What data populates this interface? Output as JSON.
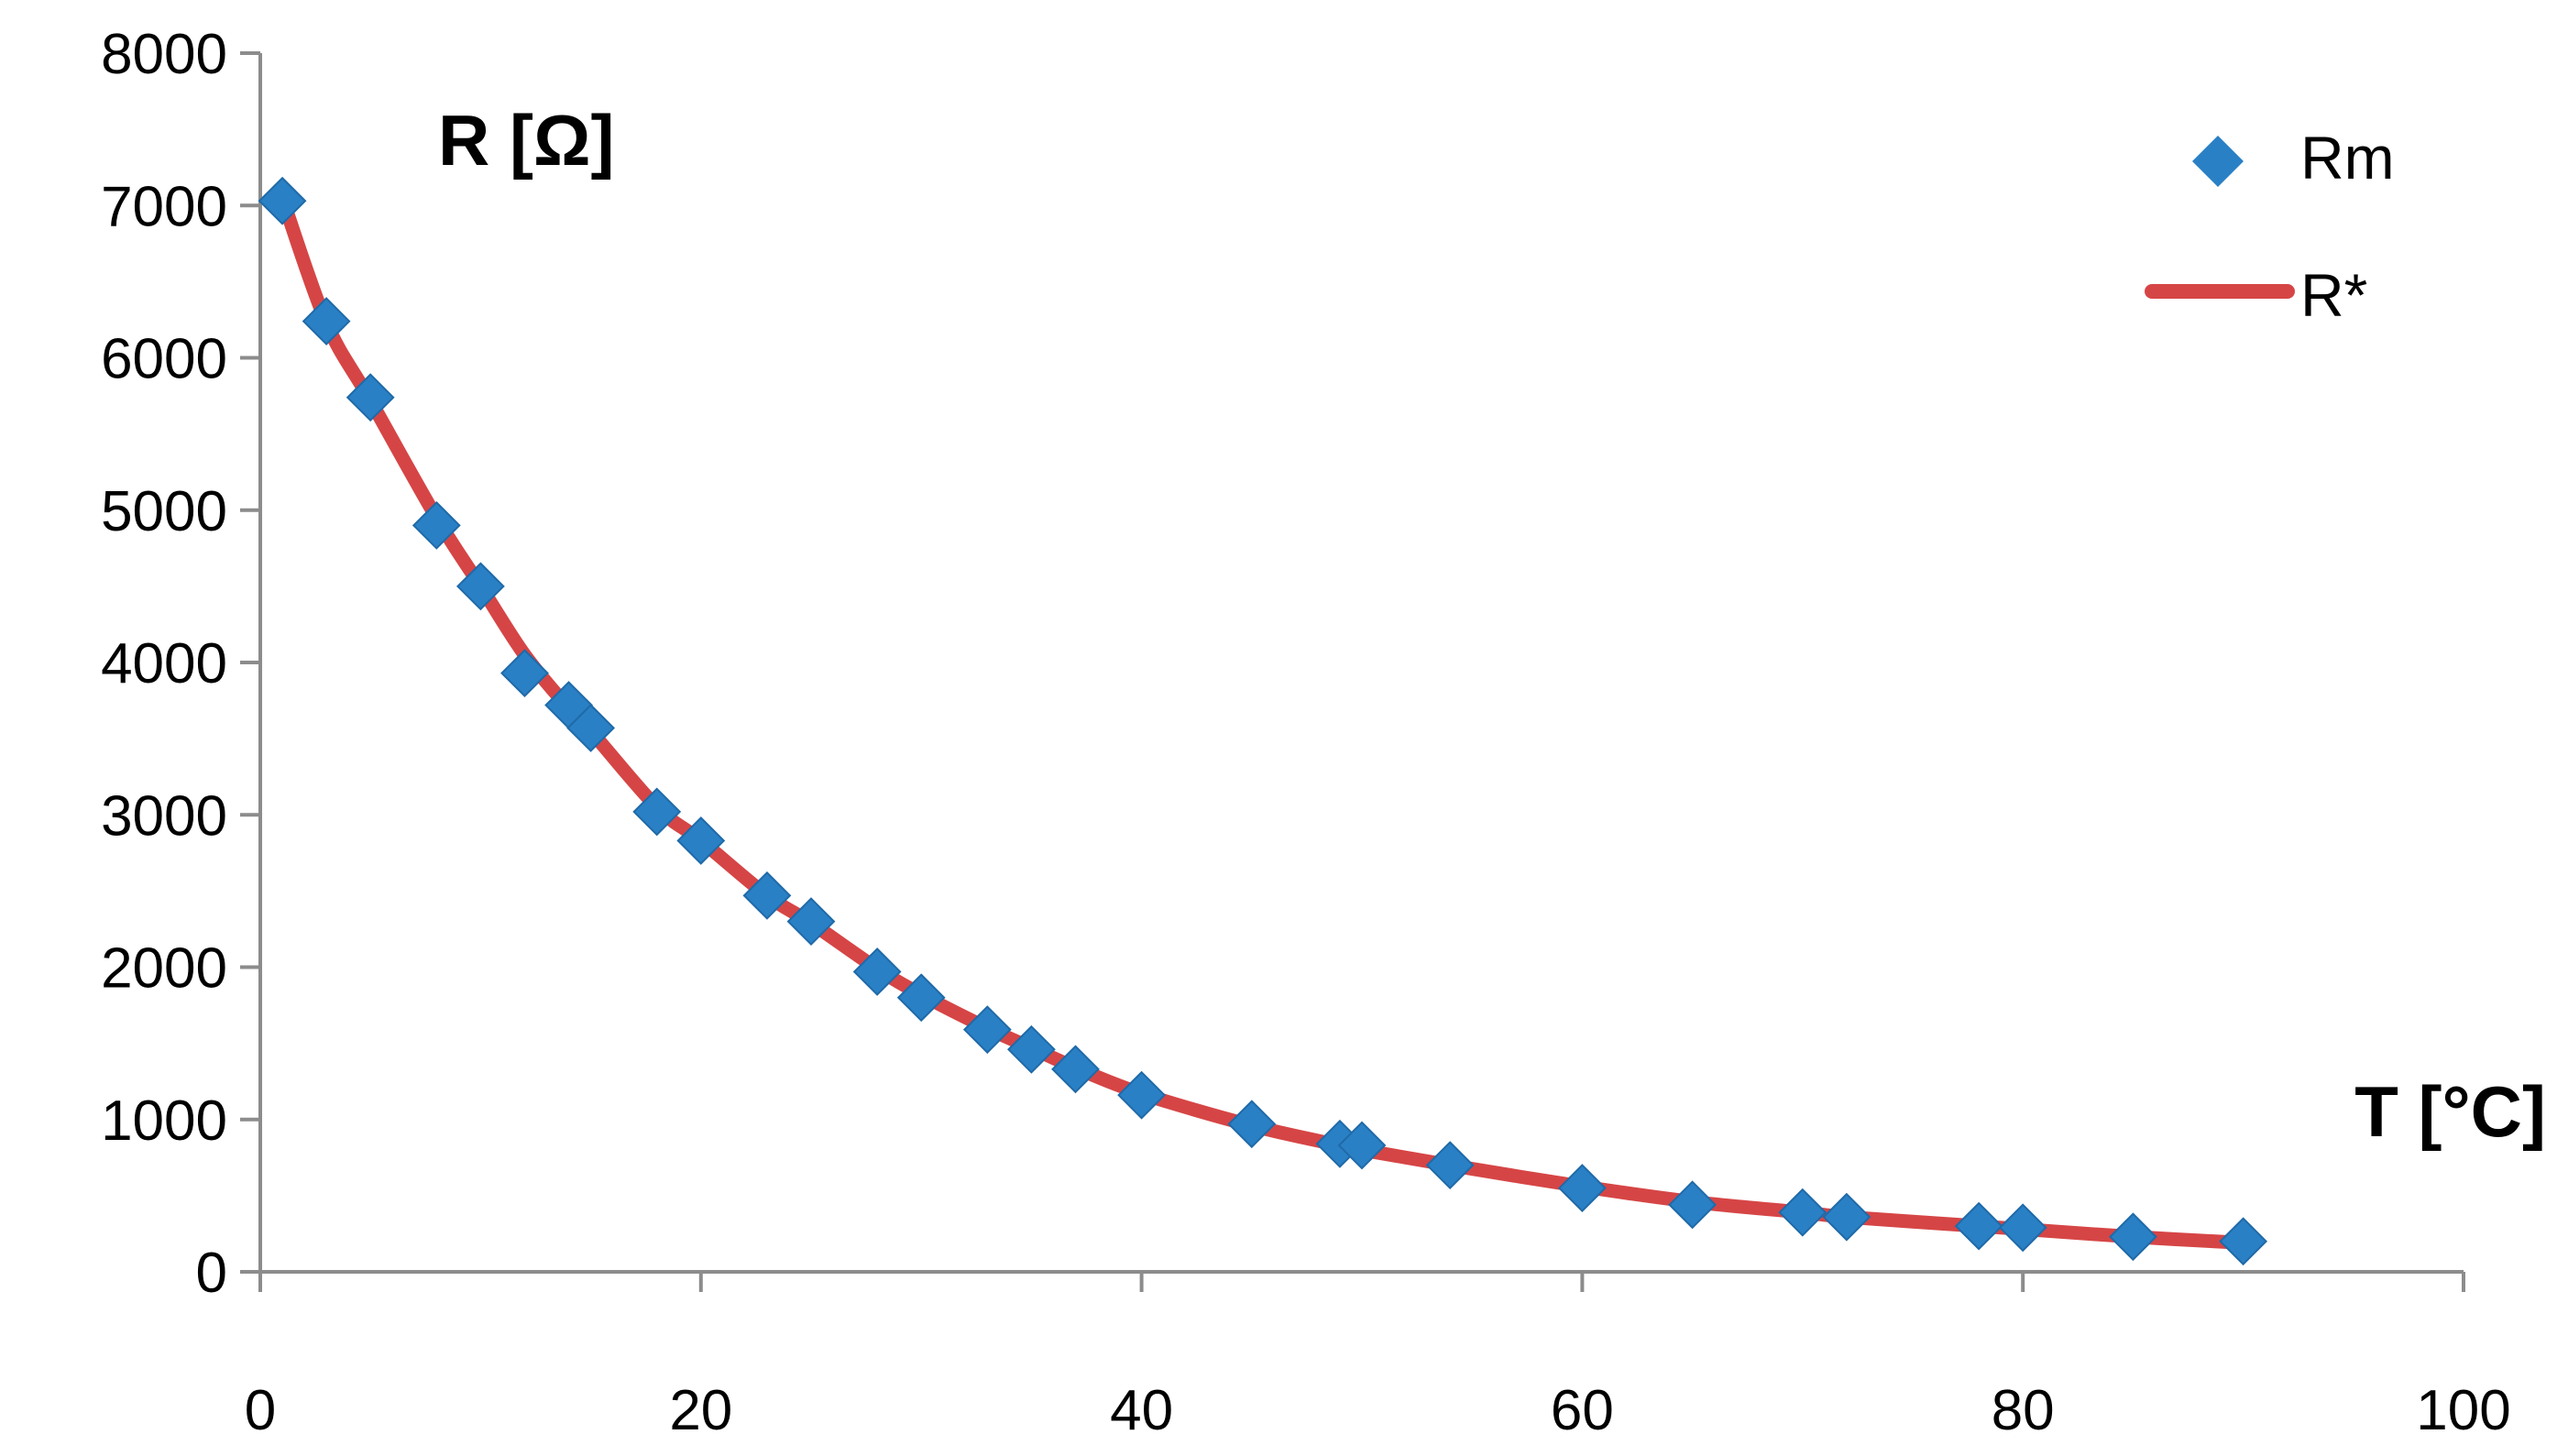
{
  "chart_data": {
    "type": "scatter",
    "title": "",
    "xlabel": "T [°C]",
    "ylabel": "R [Ω]",
    "xlim": [
      0,
      100
    ],
    "ylim": [
      0,
      8000
    ],
    "x_ticks": [
      "0",
      "20",
      "40",
      "60",
      "80",
      "100"
    ],
    "y_ticks": [
      "0",
      "1000",
      "2000",
      "3000",
      "4000",
      "5000",
      "6000",
      "7000",
      "8000"
    ],
    "grid": false,
    "legend_position": "top-right",
    "series": [
      {
        "name": "Rm",
        "kind": "markers",
        "marker": "diamond",
        "color": "#2a80c5",
        "points": [
          [
            1,
            7030
          ],
          [
            3,
            6240
          ],
          [
            5,
            5740
          ],
          [
            8,
            4900
          ],
          [
            10,
            4500
          ],
          [
            12,
            3930
          ],
          [
            14,
            3720
          ],
          [
            15,
            3570
          ],
          [
            18,
            3020
          ],
          [
            20,
            2830
          ],
          [
            23,
            2470
          ],
          [
            25,
            2300
          ],
          [
            28,
            1970
          ],
          [
            30,
            1800
          ],
          [
            33,
            1590
          ],
          [
            35,
            1460
          ],
          [
            37,
            1330
          ],
          [
            40,
            1160
          ],
          [
            45,
            970
          ],
          [
            49,
            840
          ],
          [
            50,
            830
          ],
          [
            54,
            700
          ],
          [
            60,
            550
          ],
          [
            65,
            440
          ],
          [
            70,
            390
          ],
          [
            72,
            360
          ],
          [
            78,
            300
          ],
          [
            80,
            290
          ],
          [
            85,
            230
          ],
          [
            90,
            200
          ]
        ]
      },
      {
        "name": "R*",
        "kind": "line",
        "color": "#d64545",
        "points": [
          [
            1,
            7050
          ],
          [
            3,
            6230
          ],
          [
            5,
            5720
          ],
          [
            8,
            4950
          ],
          [
            10,
            4500
          ],
          [
            12,
            4050
          ],
          [
            14,
            3700
          ],
          [
            15,
            3550
          ],
          [
            18,
            3050
          ],
          [
            20,
            2830
          ],
          [
            23,
            2470
          ],
          [
            25,
            2290
          ],
          [
            28,
            1990
          ],
          [
            30,
            1820
          ],
          [
            33,
            1600
          ],
          [
            35,
            1470
          ],
          [
            37,
            1340
          ],
          [
            40,
            1170
          ],
          [
            45,
            960
          ],
          [
            49,
            830
          ],
          [
            50,
            800
          ],
          [
            54,
            700
          ],
          [
            60,
            560
          ],
          [
            65,
            460
          ],
          [
            70,
            390
          ],
          [
            72,
            360
          ],
          [
            78,
            300
          ],
          [
            80,
            280
          ],
          [
            85,
            230
          ],
          [
            90,
            190
          ]
        ]
      }
    ]
  }
}
